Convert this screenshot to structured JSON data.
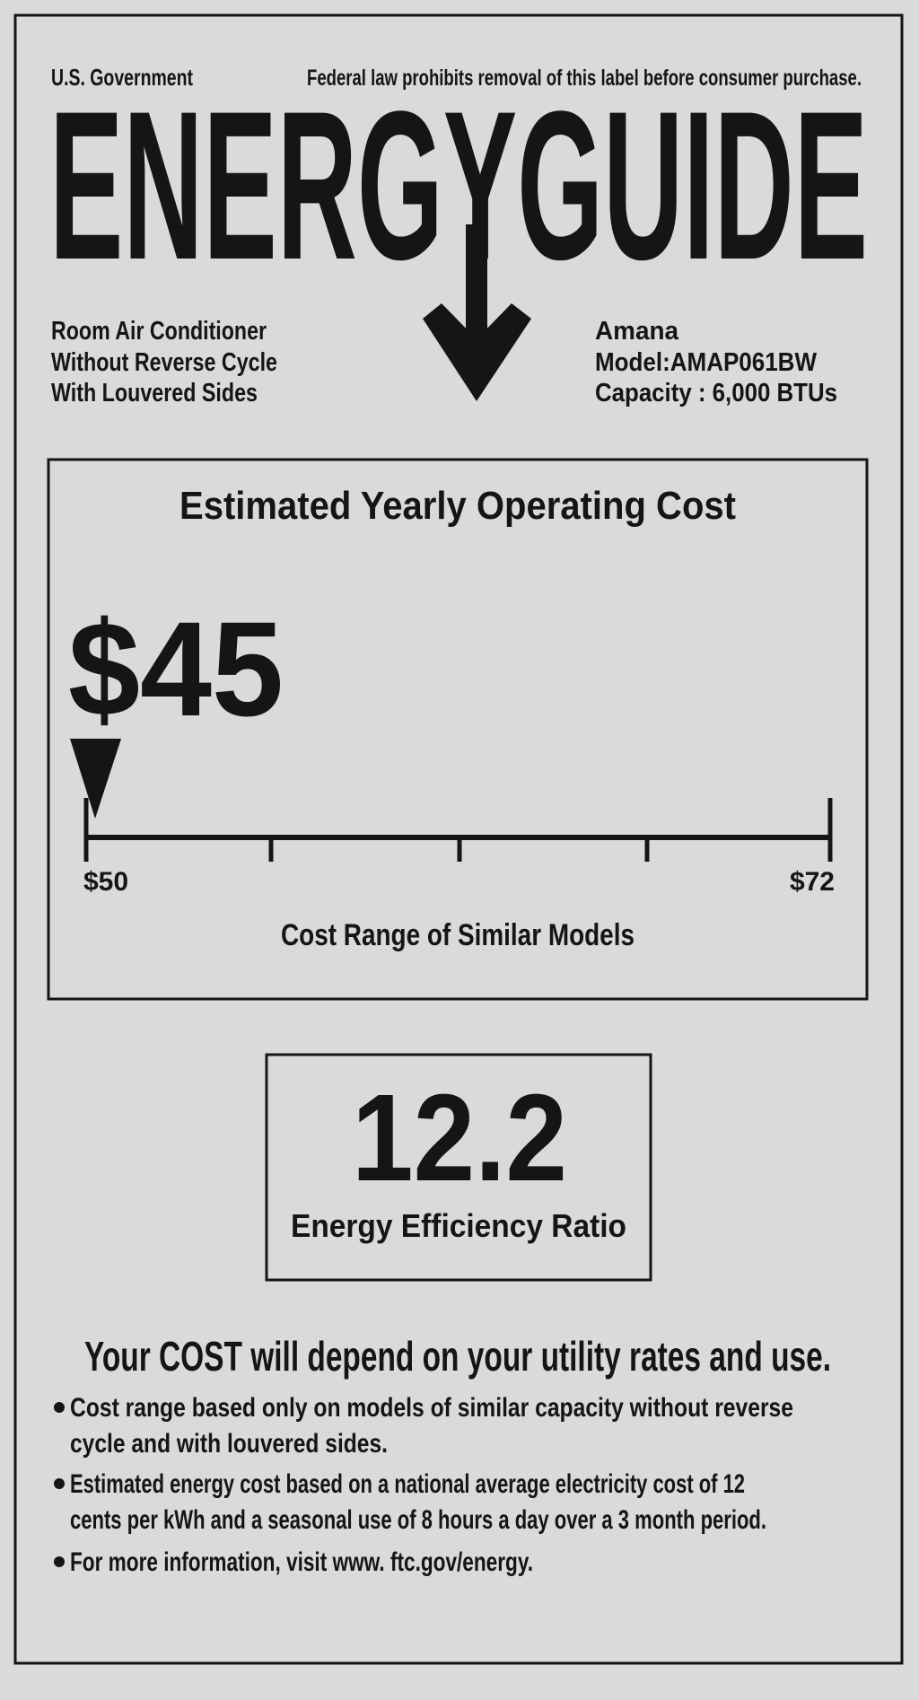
{
  "header": {
    "agency": "U.S. Government",
    "notice": "Federal law prohibits removal of this label before consumer purchase.",
    "title": "ENERGYGUIDE"
  },
  "product": {
    "lines": [
      "Room Air Conditioner",
      "Without Reverse Cycle",
      "With Louvered Sides"
    ]
  },
  "manufacturer": {
    "lines": [
      "Amana",
      "Model:AMAP061BW",
      "Capacity : 6,000 BTUs"
    ]
  },
  "cost": {
    "title": "Estimated Yearly Operating Cost",
    "amount": "$45",
    "range_low": "$50",
    "range_high": "$72",
    "caption": "Cost Range of Similar Models"
  },
  "efficiency": {
    "value": "12.2",
    "label": "Energy Efficiency Ratio"
  },
  "footer": {
    "headline": "Your COST will depend on your utility rates and use.",
    "bullets": [
      [
        "Cost range based only on models of similar capacity without reverse",
        "cycle and with louvered sides."
      ],
      [
        "Estimated energy cost based on a national average electricity cost of 12",
        "cents per kWh and a seasonal use of 8 hours a day over a 3 month period."
      ],
      [
        "For more information, visit www. ftc.gov/energy."
      ]
    ]
  }
}
